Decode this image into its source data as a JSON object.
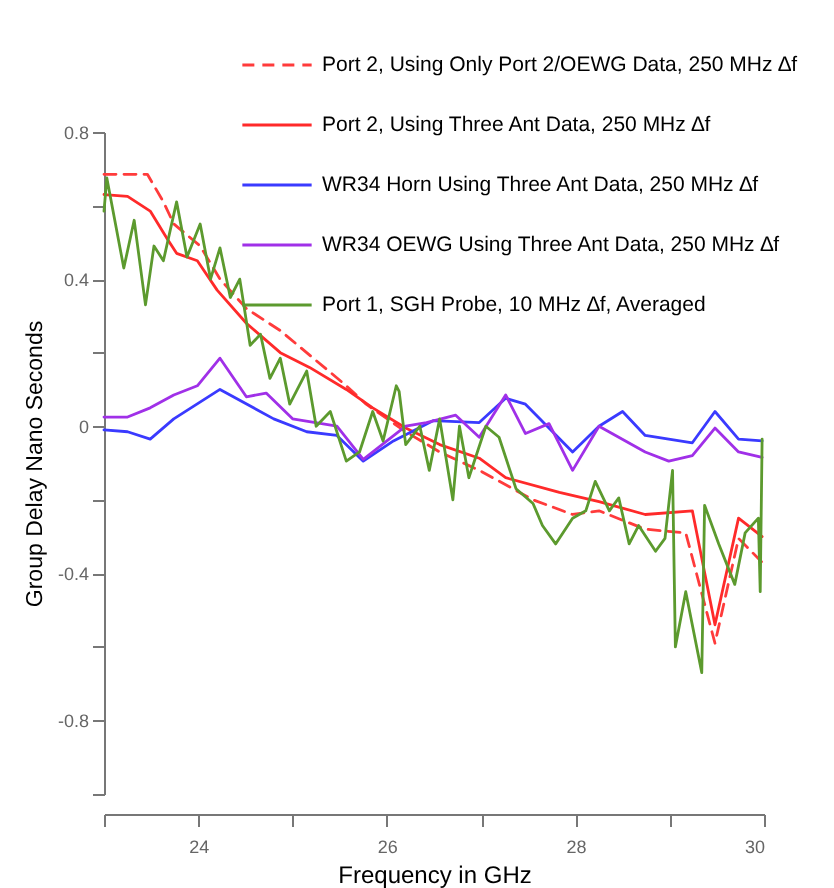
{
  "chart_data": {
    "type": "line",
    "xlabel": "Frequency in GHz",
    "ylabel": "Group Delay Nano Seconds",
    "xlim": [
      23,
      30
    ],
    "ylim": [
      -1,
      0.8
    ],
    "xticks": [
      {
        "value": 23,
        "label": null
      },
      24,
      {
        "value": 25,
        "label": null
      },
      26,
      {
        "value": 27,
        "label": null
      },
      28,
      {
        "value": 29,
        "label": null
      },
      30
    ],
    "yticks": [
      {
        "value": -1,
        "label": null
      },
      -0.8,
      {
        "value": -0.6,
        "label": null
      },
      -0.4,
      {
        "value": -0.2,
        "label": null
      },
      0,
      {
        "value": 0.2,
        "label": null
      },
      0.4,
      {
        "value": 0.6,
        "label": null
      },
      0.8
    ],
    "legend": "top right",
    "grid": false,
    "series": [
      {
        "name": "Port 2, Using Only Port 2/OEWG Data, 250 MHz ∆f",
        "color": "#ff3b3b",
        "line_style": "dashed",
        "x": [
          23.0,
          23.46,
          23.63,
          23.74,
          24.02,
          24.23,
          24.51,
          24.87,
          25.22,
          25.57,
          25.78,
          26.2,
          26.56,
          26.98,
          27.55,
          27.97,
          28.25,
          28.74,
          29.17,
          29.48,
          29.73,
          29.98
        ],
        "values": [
          0.685,
          0.685,
          0.61,
          0.55,
          0.49,
          0.4,
          0.32,
          0.26,
          0.185,
          0.11,
          0.06,
          -0.015,
          -0.07,
          -0.12,
          -0.2,
          -0.24,
          -0.23,
          -0.28,
          -0.29,
          -0.59,
          -0.305,
          -0.37
        ]
      },
      {
        "name": "Port 2, Using Three Ant Data, 250 MHz ∆f",
        "color": "#ff2a2a",
        "line_style": "solid",
        "x": [
          23.0,
          23.25,
          23.49,
          23.67,
          23.77,
          23.99,
          24.2,
          24.51,
          24.87,
          25.18,
          25.57,
          25.85,
          26.2,
          26.56,
          26.98,
          27.26,
          27.83,
          28.25,
          28.74,
          29.24,
          29.48,
          29.73,
          29.98
        ],
        "values": [
          0.63,
          0.625,
          0.585,
          0.51,
          0.47,
          0.45,
          0.37,
          0.28,
          0.2,
          0.16,
          0.1,
          0.05,
          -0.005,
          -0.05,
          -0.087,
          -0.14,
          -0.18,
          -0.205,
          -0.24,
          -0.23,
          -0.54,
          -0.25,
          -0.3
        ]
      },
      {
        "name": "WR34 Horn Using Three Ant Data, 250 MHz ∆f",
        "color": "#3a3aff",
        "line_style": "solid",
        "x": [
          23.0,
          23.25,
          23.49,
          23.74,
          24.23,
          24.8,
          25.15,
          25.47,
          25.75,
          26.07,
          26.49,
          26.98,
          27.26,
          27.47,
          27.97,
          28.25,
          28.5,
          28.74,
          29.24,
          29.48,
          29.73,
          29.98
        ],
        "values": [
          -0.01,
          -0.015,
          -0.035,
          0.02,
          0.1,
          0.02,
          -0.015,
          -0.025,
          -0.095,
          -0.04,
          0.015,
          0.01,
          0.076,
          0.06,
          -0.07,
          0.0,
          0.04,
          -0.025,
          -0.045,
          0.04,
          -0.035,
          -0.04
        ]
      },
      {
        "name": "WR34 OEWG Using Three Ant Data, 250 MHz ∆f",
        "color": "#a030e8",
        "line_style": "solid",
        "x": [
          23.0,
          23.25,
          23.49,
          23.74,
          23.99,
          24.23,
          24.51,
          24.72,
          25.0,
          25.47,
          25.75,
          26.2,
          26.42,
          26.73,
          26.98,
          27.26,
          27.47,
          27.72,
          27.97,
          28.25,
          28.74,
          28.99,
          29.24,
          29.48,
          29.73,
          29.98
        ],
        "values": [
          0.025,
          0.025,
          0.05,
          0.085,
          0.11,
          0.185,
          0.08,
          0.09,
          0.02,
          0.0,
          -0.09,
          0.0,
          0.01,
          0.03,
          -0.03,
          0.085,
          -0.02,
          0.007,
          -0.12,
          0.0,
          -0.07,
          -0.095,
          -0.08,
          -0.005,
          -0.07,
          -0.085
        ]
      },
      {
        "name": "Port 1, SGH Probe, 10 MHz ∆f, Averaged",
        "color": "#5c9a2e",
        "line_style": "solid",
        "x": [
          23.0,
          23.03,
          23.21,
          23.32,
          23.44,
          23.53,
          23.63,
          23.77,
          23.88,
          24.02,
          24.13,
          24.23,
          24.34,
          24.44,
          24.55,
          24.66,
          24.76,
          24.87,
          24.97,
          25.15,
          25.25,
          25.4,
          25.57,
          25.71,
          25.85,
          25.96,
          26.1,
          26.13,
          26.2,
          26.35,
          26.45,
          26.56,
          26.7,
          26.77,
          26.87,
          27.05,
          27.19,
          27.37,
          27.55,
          27.65,
          27.79,
          27.97,
          28.11,
          28.21,
          28.36,
          28.46,
          28.57,
          28.67,
          28.85,
          28.95,
          29.03,
          29.06,
          29.17,
          29.34,
          29.37,
          29.52,
          29.69,
          29.8,
          29.94,
          29.96,
          29.98
        ],
        "values": [
          0.585,
          0.675,
          0.43,
          0.56,
          0.33,
          0.49,
          0.45,
          0.61,
          0.46,
          0.55,
          0.4,
          0.485,
          0.35,
          0.4,
          0.22,
          0.25,
          0.13,
          0.185,
          0.06,
          0.15,
          0.0,
          0.04,
          -0.095,
          -0.07,
          0.04,
          -0.04,
          0.11,
          0.095,
          -0.05,
          0.0,
          -0.12,
          0.02,
          -0.2,
          0.0,
          -0.14,
          0.0,
          -0.03,
          -0.17,
          -0.21,
          -0.27,
          -0.32,
          -0.25,
          -0.23,
          -0.15,
          -0.23,
          -0.195,
          -0.32,
          -0.27,
          -0.34,
          -0.305,
          -0.12,
          -0.6,
          -0.45,
          -0.67,
          -0.215,
          -0.32,
          -0.43,
          -0.29,
          -0.25,
          -0.45,
          -0.035
        ]
      }
    ]
  }
}
